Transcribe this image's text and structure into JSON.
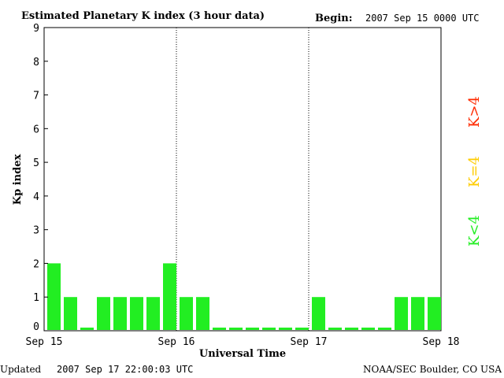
{
  "header": {
    "title": "Estimated Planetary K index (3 hour data)",
    "begin_label": "Begin:",
    "begin_value": "2007 Sep 15 0000 UTC"
  },
  "footer": {
    "updated_label": "Updated",
    "updated_value": "2007 Sep 17 22:00:03 UTC",
    "source": "NOAA/SEC Boulder, CO USA"
  },
  "legend": [
    {
      "label": "K>4",
      "color": "#ff2a00"
    },
    {
      "label": "K=4",
      "color": "#ffcc00"
    },
    {
      "label": "K<4",
      "color": "#22ee22"
    }
  ],
  "chart_data": {
    "type": "bar",
    "title": "Estimated Planetary K index (3 hour data)",
    "xlabel": "Universal Time",
    "ylabel": "Kp index",
    "ylim": [
      0,
      9
    ],
    "yticks": [
      "0",
      "1",
      "2",
      "3",
      "4",
      "5",
      "6",
      "7",
      "8",
      "9"
    ],
    "xticks": [
      "Sep 15",
      "Sep 16",
      "Sep 17",
      "Sep 18"
    ],
    "grid": false,
    "day_separators": [
      "Sep 16",
      "Sep 17"
    ],
    "bar_color": "#22ee22",
    "interval_hours": 3,
    "values": [
      2,
      1,
      0,
      1,
      1,
      1,
      1,
      2,
      1,
      1,
      0,
      0,
      0,
      0,
      0,
      0,
      1,
      0,
      0,
      0,
      0,
      1,
      1,
      1
    ]
  }
}
